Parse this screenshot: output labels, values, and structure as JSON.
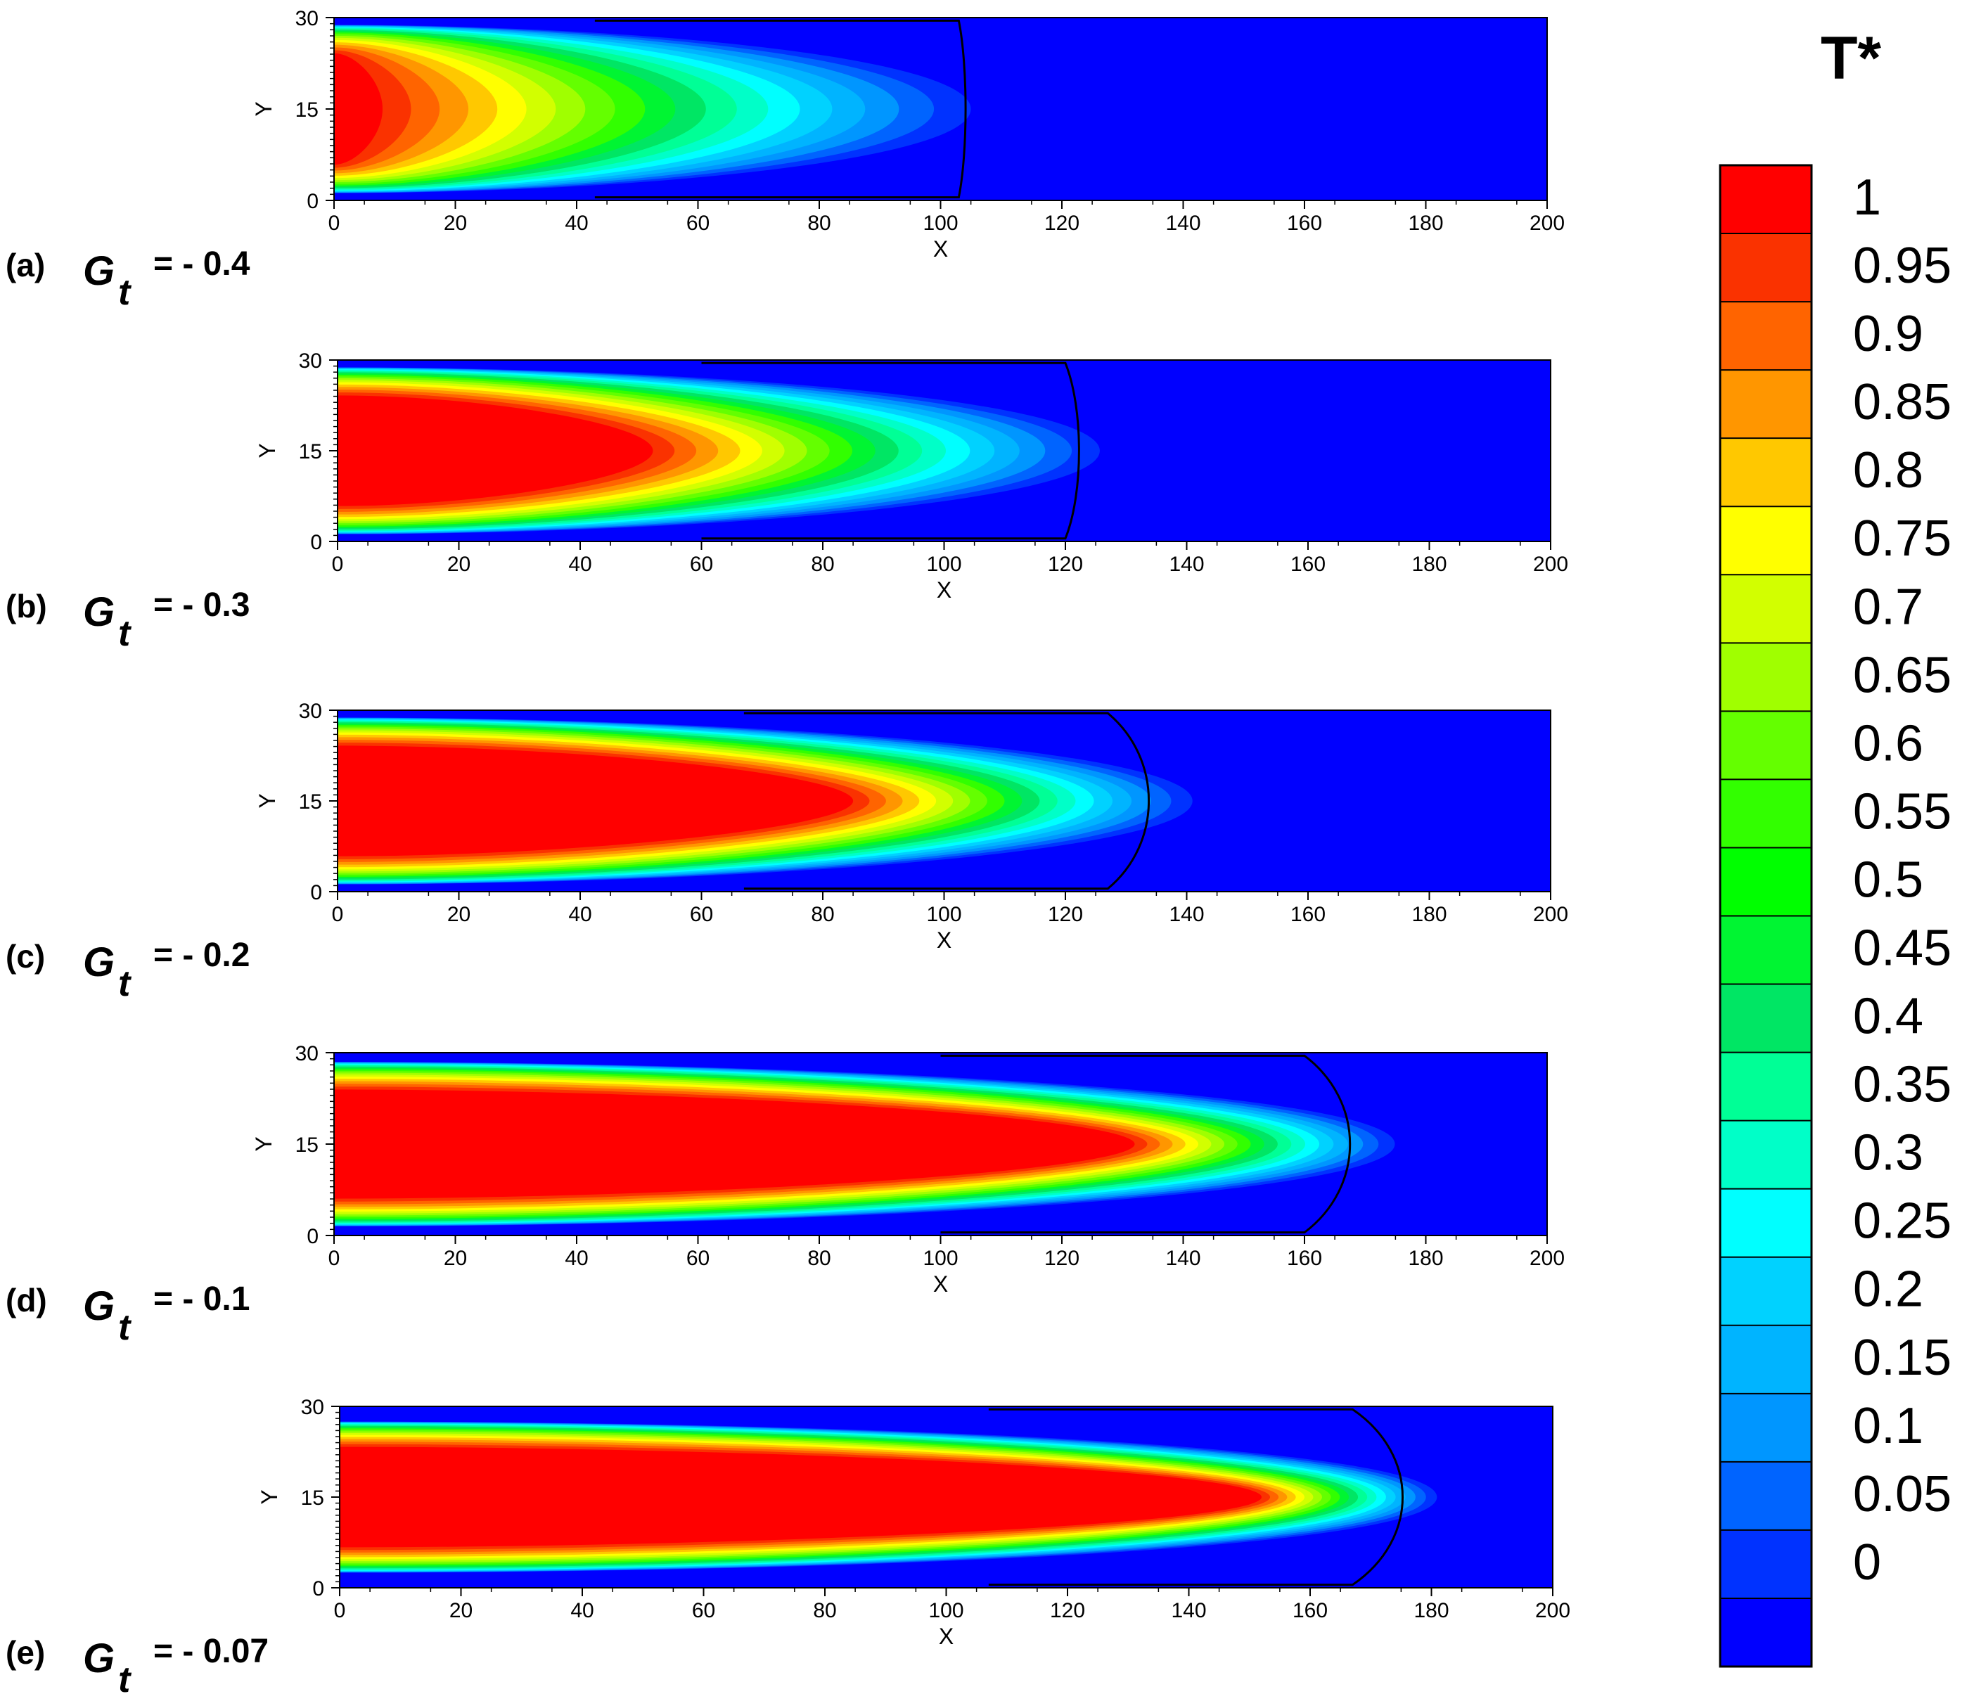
{
  "chart_data": {
    "type": "heatmap",
    "colorbar": {
      "title": "T*",
      "ticks": [
        "1",
        "0.95",
        "0.9",
        "0.85",
        "0.8",
        "0.75",
        "0.7",
        "0.65",
        "0.6",
        "0.55",
        "0.5",
        "0.45",
        "0.4",
        "0.35",
        "0.3",
        "0.25",
        "0.2",
        "0.15",
        "0.1",
        "0.05",
        "0"
      ],
      "colors": [
        "#ff0000",
        "#fa3200",
        "#ff6400",
        "#ff9600",
        "#ffc800",
        "#ffff00",
        "#d2ff00",
        "#a0ff00",
        "#64ff00",
        "#32ff00",
        "#00ff00",
        "#00f532",
        "#00e664",
        "#00ff96",
        "#00ffc8",
        "#00ffff",
        "#00d2ff",
        "#00b4ff",
        "#0096ff",
        "#0064ff",
        "#0032ff",
        "#0000ff"
      ]
    },
    "panels": [
      {
        "tag": "(a)",
        "param_symbol": "G",
        "param_subscript": "t",
        "param_value": "= - 0.4",
        "xlabel": "X",
        "ylabel": "Y",
        "xlim": [
          0,
          200
        ],
        "ylim": [
          0,
          30
        ],
        "xticks": [
          "0",
          "20",
          "40",
          "60",
          "80",
          "100",
          "120",
          "140",
          "160",
          "180",
          "200"
        ],
        "yticks": [
          "0",
          "15",
          "30"
        ],
        "hot_core_x": 8,
        "front_x": 103,
        "front_bulge": 1.5,
        "halo_x": 112,
        "wall_thickness": 1.2
      },
      {
        "tag": "(b)",
        "param_symbol": "G",
        "param_subscript": "t",
        "param_value": "= - 0.3",
        "xlabel": "X",
        "ylabel": "Y",
        "xlim": [
          0,
          200
        ],
        "ylim": [
          0,
          30
        ],
        "xticks": [
          "0",
          "20",
          "40",
          "60",
          "80",
          "100",
          "120",
          "140",
          "160",
          "180",
          "200"
        ],
        "yticks": [
          "0",
          "15",
          "30"
        ],
        "hot_core_x": 52,
        "front_x": 120,
        "front_bulge": 3,
        "halo_x": 131,
        "wall_thickness": 1.2
      },
      {
        "tag": "(c)",
        "param_symbol": "G",
        "param_subscript": "t",
        "param_value": "= - 0.2",
        "xlabel": "X",
        "ylabel": "Y",
        "xlim": [
          0,
          200
        ],
        "ylim": [
          0,
          30
        ],
        "xticks": [
          "0",
          "20",
          "40",
          "60",
          "80",
          "100",
          "120",
          "140",
          "160",
          "180",
          "200"
        ],
        "yticks": [
          "0",
          "15",
          "30"
        ],
        "hot_core_x": 85,
        "front_x": 127,
        "front_bulge": 9,
        "halo_x": 145,
        "wall_thickness": 1.2
      },
      {
        "tag": "(d)",
        "param_symbol": "G",
        "param_subscript": "t",
        "param_value": "= - 0.1",
        "xlabel": "X",
        "ylabel": "Y",
        "xlim": [
          0,
          200
        ],
        "ylim": [
          0,
          30
        ],
        "xticks": [
          "0",
          "20",
          "40",
          "60",
          "80",
          "100",
          "120",
          "140",
          "160",
          "180",
          "200"
        ],
        "yticks": [
          "0",
          "15",
          "30"
        ],
        "hot_core_x": 132,
        "front_x": 160,
        "front_bulge": 10,
        "halo_x": 178,
        "wall_thickness": 1.5
      },
      {
        "tag": "(e)",
        "param_symbol": "G",
        "param_subscript": "t",
        "param_value": "= - 0.07",
        "xlabel": "X",
        "ylabel": "Y",
        "xlim": [
          0,
          200
        ],
        "ylim": [
          0,
          30
        ],
        "xticks": [
          "0",
          "20",
          "40",
          "60",
          "80",
          "100",
          "120",
          "140",
          "160",
          "180",
          "200"
        ],
        "yticks": [
          "0",
          "15",
          "30"
        ],
        "hot_core_x": 152,
        "front_x": 167,
        "front_bulge": 11,
        "halo_x": 183,
        "wall_thickness": 2.5
      }
    ]
  }
}
